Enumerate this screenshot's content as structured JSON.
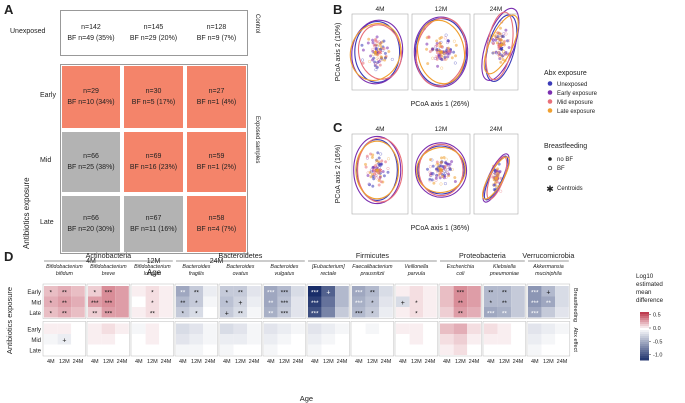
{
  "panels": {
    "a": "A",
    "b": "B",
    "c": "C",
    "d": "D"
  },
  "panel_a": {
    "row_labels": [
      "Unexposed",
      "Early",
      "Mid",
      "Late"
    ],
    "col_labels": [
      "4M",
      "12M",
      "24M"
    ],
    "x_title": "Age",
    "y_title": "Antibiotics exposure",
    "right_top": "Control",
    "right_bottom": "Exposed samples",
    "colors": {
      "highlight": "#f4846a",
      "grey": "#b3b3b3",
      "white": "#ffffff"
    },
    "unexposed": [
      {
        "n": "n=142",
        "bf": "BF n=49 (35%)"
      },
      {
        "n": "n=145",
        "bf": "BF n=29 (20%)"
      },
      {
        "n": "n=128",
        "bf": "BF n=9 (7%)"
      }
    ],
    "exposed": [
      [
        {
          "n": "n=29",
          "bf": "BF n=10 (34%)",
          "hl": true
        },
        {
          "n": "n=30",
          "bf": "BF n=5 (17%)",
          "hl": true
        },
        {
          "n": "n=27",
          "bf": "BF n=1 (4%)",
          "hl": true
        }
      ],
      [
        {
          "n": "n=66",
          "bf": "BF n=25 (38%)",
          "hl": false
        },
        {
          "n": "n=69",
          "bf": "BF n=16 (23%)",
          "hl": true
        },
        {
          "n": "n=59",
          "bf": "BF n=1 (2%)",
          "hl": true
        }
      ],
      [
        {
          "n": "n=66",
          "bf": "BF n=20 (30%)",
          "hl": false
        },
        {
          "n": "n=67",
          "bf": "BF n=11 (16%)",
          "hl": false
        },
        {
          "n": "n=58",
          "bf": "BF n=4 (7%)",
          "hl": true
        }
      ]
    ]
  },
  "panel_bc": {
    "facets": [
      "4M",
      "12M",
      "24M"
    ],
    "b_xlabel": "PCoA axis 1 (26%)",
    "b_ylabel": "PCoA axis 2 (10%)",
    "c_xlabel": "PCoA axis 1 (36%)",
    "c_ylabel": "PCoA axis 2 (16%)"
  },
  "legend": {
    "abx_title": "Abx exposure",
    "abx_items": [
      {
        "label": "Unexposed",
        "color": "#3b3bb8"
      },
      {
        "label": "Early exposure",
        "color": "#7b2fb0"
      },
      {
        "label": "Mid exposure",
        "color": "#e8707a"
      },
      {
        "label": "Late exposure",
        "color": "#f0a030"
      }
    ],
    "bf_title": "Breastfeeding",
    "bf_items": [
      "no BF",
      "BF"
    ],
    "centroids": "Centroids"
  },
  "panel_d": {
    "phyla": [
      "Actinobacteria",
      "Bacteroidetes",
      "Firmicutes",
      "Proteobacteria",
      "Verrucomicrobia"
    ],
    "species": [
      [
        "Bifidobacterium",
        "bifidum"
      ],
      [
        "Bifidobacterium",
        "breve"
      ],
      [
        "Bifidobacterium",
        "longum"
      ],
      [
        "Bacteroides",
        "fragilis"
      ],
      [
        "Bacteroides",
        "ovatus"
      ],
      [
        "Bacteroides",
        "vulgatus"
      ],
      [
        "[Eubacterium]",
        "rectale"
      ],
      [
        "Faecalibacterium",
        "prausnitzii"
      ],
      [
        "Veillonella",
        "parvula"
      ],
      [
        "Escherichia",
        "coli"
      ],
      [
        "Klebsiella",
        "pneumoniae"
      ],
      [
        "Akkermansia",
        "muciniphila"
      ]
    ],
    "rows": [
      "Early",
      "Mid",
      "Late"
    ],
    "cols": [
      "4M",
      "12M",
      "24M"
    ],
    "x_title": "Age",
    "y_title": "Antibiotics exposure",
    "strip_top": "Breastfeeding",
    "strip_bottom": "Abx effect",
    "legend_title": [
      "Log10",
      "estimated",
      "mean",
      "difference"
    ],
    "legend_ticks": [
      "0.5",
      "0.0",
      "-0.5",
      "-1.0"
    ],
    "top_values": [
      [
        [
          0.2,
          0.25,
          0.2
        ],
        [
          0.25,
          0.3,
          0.25
        ],
        [
          0.2,
          0.25,
          0.2
        ]
      ],
      [
        [
          0.15,
          0.35,
          0.3
        ],
        [
          0.3,
          0.35,
          0.3
        ],
        [
          0.15,
          0.3,
          0.3
        ]
      ],
      [
        [
          0.05,
          0.1,
          0.05
        ],
        [
          0.0,
          0.1,
          0.05
        ],
        [
          0.05,
          0.1,
          0.05
        ]
      ],
      [
        [
          -0.5,
          -0.3,
          -0.1
        ],
        [
          -0.4,
          -0.3,
          -0.05
        ],
        [
          -0.3,
          -0.2,
          0.0
        ]
      ],
      [
        [
          -0.3,
          -0.3,
          -0.15
        ],
        [
          -0.35,
          -0.25,
          -0.1
        ],
        [
          -0.3,
          -0.2,
          -0.05
        ]
      ],
      [
        [
          -0.5,
          -0.4,
          -0.2
        ],
        [
          -0.5,
          -0.35,
          -0.15
        ],
        [
          -0.45,
          -0.3,
          -0.15
        ]
      ],
      [
        [
          -1.2,
          -0.9,
          -0.4
        ],
        [
          -1.1,
          -0.8,
          -0.4
        ],
        [
          -1.0,
          -0.7,
          -0.3
        ]
      ],
      [
        [
          -0.5,
          -0.4,
          -0.2
        ],
        [
          -0.45,
          -0.35,
          -0.15
        ],
        [
          -0.4,
          -0.3,
          -0.1
        ]
      ],
      [
        [
          0.05,
          0.1,
          0.05
        ],
        [
          -0.2,
          0.1,
          0.05
        ],
        [
          0.05,
          0.1,
          0.05
        ]
      ],
      [
        [
          0.2,
          0.35,
          0.3
        ],
        [
          0.2,
          0.35,
          0.3
        ],
        [
          0.15,
          0.3,
          0.25
        ]
      ],
      [
        [
          -0.4,
          -0.4,
          -0.3
        ],
        [
          -0.4,
          -0.4,
          -0.3
        ],
        [
          -0.5,
          -0.45,
          -0.3
        ]
      ],
      [
        [
          -0.6,
          -0.4,
          -0.2
        ],
        [
          -0.6,
          -0.5,
          -0.2
        ],
        [
          -0.5,
          -0.3,
          -0.15
        ]
      ]
    ],
    "top_marks": [
      [
        [
          "*",
          "**",
          ""
        ],
        [
          "*",
          "**",
          ""
        ],
        [
          "*",
          "**",
          ""
        ]
      ],
      [
        [
          "*",
          "***",
          ""
        ],
        [
          "***",
          "***",
          ""
        ],
        [
          "**",
          "***",
          ""
        ]
      ],
      [
        [
          "",
          "*",
          ""
        ],
        [
          "",
          "*",
          ""
        ],
        [
          "",
          "**",
          ""
        ]
      ],
      [
        [
          "**",
          "**",
          ""
        ],
        [
          "**",
          "*",
          ""
        ],
        [
          "*",
          "*",
          ""
        ]
      ],
      [
        [
          "*",
          "**",
          ""
        ],
        [
          "*",
          "+",
          ""
        ],
        [
          "+",
          "**",
          ""
        ]
      ],
      [
        [
          "***",
          "***",
          ""
        ],
        [
          "**",
          "***",
          ""
        ],
        [
          "**",
          "***",
          ""
        ]
      ],
      [
        [
          "***",
          "+",
          ""
        ],
        [
          "***",
          "",
          ""
        ],
        [
          "***",
          "",
          ""
        ]
      ],
      [
        [
          "***",
          "**",
          ""
        ],
        [
          "***",
          "*",
          ""
        ],
        [
          "***",
          "*",
          ""
        ]
      ],
      [
        [
          "",
          "",
          ""
        ],
        [
          "+",
          "*",
          ""
        ],
        [
          "",
          "*",
          ""
        ]
      ],
      [
        [
          "",
          "***",
          ""
        ],
        [
          "",
          "**",
          ""
        ],
        [
          "",
          "**",
          ""
        ]
      ],
      [
        [
          "**",
          "**",
          ""
        ],
        [
          "*",
          "**",
          ""
        ],
        [
          "***",
          "**",
          ""
        ]
      ],
      [
        [
          "***",
          "+",
          ""
        ],
        [
          "***",
          "**",
          ""
        ],
        [
          "***",
          "",
          ""
        ]
      ]
    ],
    "bot_values": [
      [
        [
          0.05,
          0.05,
          0.0
        ],
        [
          -0.05,
          -0.1,
          0.0
        ],
        [
          0.0,
          0.0,
          0.0
        ]
      ],
      [
        [
          0.05,
          0.1,
          0.05
        ],
        [
          0.05,
          0.05,
          0.0
        ],
        [
          0.0,
          0.0,
          0.0
        ]
      ],
      [
        [
          -0.05,
          0.05,
          0.0
        ],
        [
          0.0,
          0.05,
          0.0
        ],
        [
          0.0,
          0.0,
          0.0
        ]
      ],
      [
        [
          -0.2,
          -0.15,
          -0.05
        ],
        [
          -0.15,
          -0.1,
          -0.05
        ],
        [
          -0.05,
          -0.05,
          0.0
        ]
      ],
      [
        [
          -0.2,
          -0.15,
          -0.05
        ],
        [
          -0.1,
          -0.1,
          -0.05
        ],
        [
          -0.05,
          0.0,
          0.0
        ]
      ],
      [
        [
          -0.15,
          -0.1,
          -0.05
        ],
        [
          -0.1,
          -0.05,
          0.0
        ],
        [
          -0.05,
          0.0,
          0.0
        ]
      ],
      [
        [
          -0.15,
          -0.1,
          -0.05
        ],
        [
          -0.1,
          -0.05,
          0.0
        ],
        [
          -0.05,
          0.0,
          0.0
        ]
      ],
      [
        [
          0.0,
          -0.05,
          0.0
        ],
        [
          0.0,
          0.0,
          0.0
        ],
        [
          0.0,
          0.0,
          0.0
        ]
      ],
      [
        [
          0.05,
          0.05,
          0.0
        ],
        [
          0.0,
          0.05,
          0.0
        ],
        [
          0.0,
          0.0,
          0.0
        ]
      ],
      [
        [
          0.2,
          0.25,
          0.1
        ],
        [
          0.1,
          0.15,
          0.05
        ],
        [
          0.05,
          0.1,
          0.0
        ]
      ],
      [
        [
          0.1,
          0.05,
          0.0
        ],
        [
          0.05,
          0.05,
          0.0
        ],
        [
          0.0,
          0.0,
          0.0
        ]
      ],
      [
        [
          -0.15,
          -0.1,
          -0.05
        ],
        [
          -0.1,
          -0.05,
          0.0
        ],
        [
          -0.05,
          0.0,
          0.0
        ]
      ]
    ],
    "bot_marks": {
      "species": 0,
      "row": 1,
      "col": 1,
      "mark": "+"
    }
  }
}
